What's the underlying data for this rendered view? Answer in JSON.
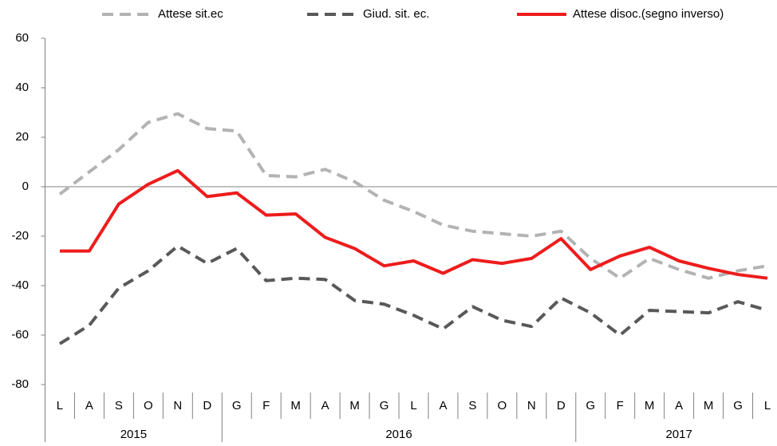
{
  "chart_data": {
    "type": "line",
    "categories": [
      "L",
      "A",
      "S",
      "O",
      "N",
      "D",
      "G",
      "F",
      "M",
      "A",
      "M",
      "G",
      "L",
      "A",
      "S",
      "O",
      "N",
      "D",
      "G",
      "F",
      "M",
      "A",
      "M",
      "G",
      "L"
    ],
    "years": [
      "2015",
      "2015",
      "2015",
      "2015",
      "2015",
      "2015",
      "2016",
      "2016",
      "2016",
      "2016",
      "2016",
      "2016",
      "2016",
      "2016",
      "2016",
      "2016",
      "2016",
      "2016",
      "2017",
      "2017",
      "2017",
      "2017",
      "2017",
      "2017",
      "2017"
    ],
    "series": [
      {
        "name": "Attese sit.ec",
        "color": "#b3b3b3",
        "dash": true,
        "values": [
          -3,
          6,
          15,
          26,
          29.5,
          23.5,
          22.5,
          4.5,
          4,
          7,
          2,
          -5.5,
          -10,
          -15.5,
          -18,
          -19,
          -20,
          -18,
          -29,
          -37,
          -29,
          -33.5,
          -37,
          -34,
          -32
        ]
      },
      {
        "name": "Giud. sit. ec.",
        "color": "#595959",
        "dash": true,
        "values": [
          -63.5,
          -56,
          -41,
          -34,
          -24,
          -31,
          -25,
          -38,
          -37,
          -37.5,
          -46,
          -47.5,
          -52,
          -57.5,
          -48.5,
          -54,
          -56.5,
          -45,
          -51,
          -60,
          -50,
          -50.5,
          -51,
          -46.5,
          -50
        ]
      },
      {
        "name": "Attese disoc.(segno inverso)",
        "color": "#ee1c1c",
        "dash": false,
        "values": [
          -26,
          -26,
          -7,
          1,
          6.5,
          -4,
          -2.5,
          -11.5,
          -11,
          -20.5,
          -25,
          -32,
          -30,
          -35,
          -29.5,
          -31,
          -29,
          -21,
          -33.5,
          -28,
          -24.5,
          -30,
          -33,
          -35.5,
          -37
        ]
      }
    ],
    "ylim": [
      -80,
      60
    ],
    "yticks": [
      -80,
      -60,
      -40,
      -20,
      0,
      20,
      40,
      60
    ]
  }
}
